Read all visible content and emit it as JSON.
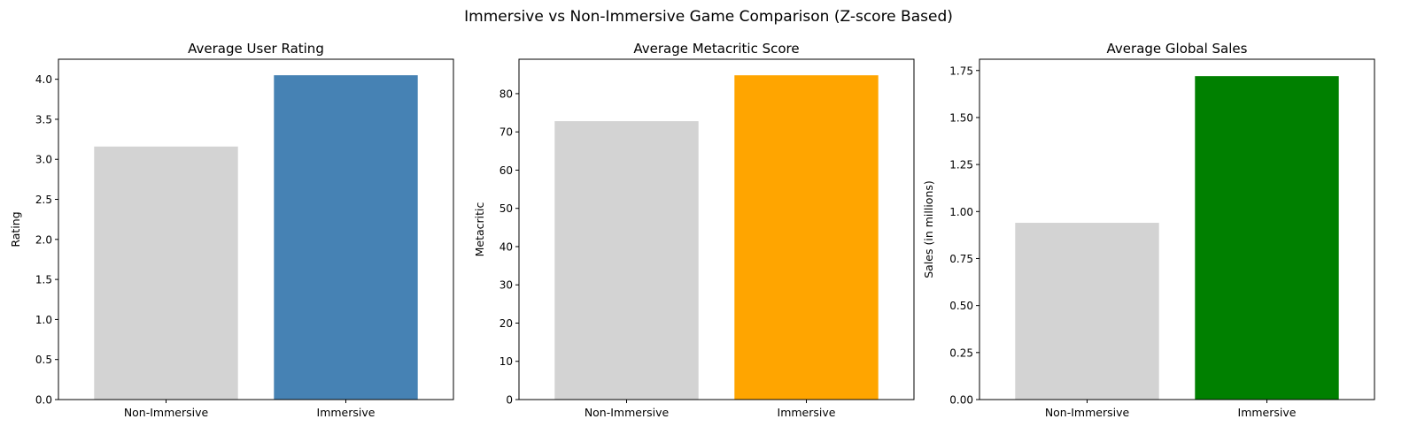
{
  "figure": {
    "title": "Immersive vs Non-Immersive Game Comparison (Z-score Based)"
  },
  "chart_data": [
    {
      "type": "bar",
      "title": "Average User Rating",
      "xlabel": "",
      "ylabel": "Rating",
      "categories": [
        "Non-Immersive",
        "Immersive"
      ],
      "values": [
        3.16,
        4.05
      ],
      "colors": [
        "#d3d3d3",
        "#4682b4"
      ],
      "ylim": [
        0,
        4.25
      ],
      "yticks": [
        0.0,
        0.5,
        1.0,
        1.5,
        2.0,
        2.5,
        3.0,
        3.5,
        4.0
      ],
      "ytick_labels": [
        "0.0",
        "0.5",
        "1.0",
        "1.5",
        "2.0",
        "2.5",
        "3.0",
        "3.5",
        "4.0"
      ],
      "grid": false,
      "legend": "none"
    },
    {
      "type": "bar",
      "title": "Average Metacritic Score",
      "xlabel": "",
      "ylabel": "Metacritic",
      "categories": [
        "Non-Immersive",
        "Immersive"
      ],
      "values": [
        72.8,
        84.8
      ],
      "colors": [
        "#d3d3d3",
        "#ffa500"
      ],
      "ylim": [
        0,
        89
      ],
      "yticks": [
        0,
        10,
        20,
        30,
        40,
        50,
        60,
        70,
        80
      ],
      "ytick_labels": [
        "0",
        "10",
        "20",
        "30",
        "40",
        "50",
        "60",
        "70",
        "80"
      ],
      "grid": false,
      "legend": "none"
    },
    {
      "type": "bar",
      "title": "Average Global Sales",
      "xlabel": "",
      "ylabel": "Sales (in millions)",
      "categories": [
        "Non-Immersive",
        "Immersive"
      ],
      "values": [
        0.94,
        1.72
      ],
      "colors": [
        "#d3d3d3",
        "#008000"
      ],
      "ylim": [
        0,
        1.81
      ],
      "yticks": [
        0.0,
        0.25,
        0.5,
        0.75,
        1.0,
        1.25,
        1.5,
        1.75
      ],
      "ytick_labels": [
        "0.00",
        "0.25",
        "0.50",
        "0.75",
        "1.00",
        "1.25",
        "1.50",
        "1.75"
      ],
      "grid": false,
      "legend": "none"
    }
  ]
}
